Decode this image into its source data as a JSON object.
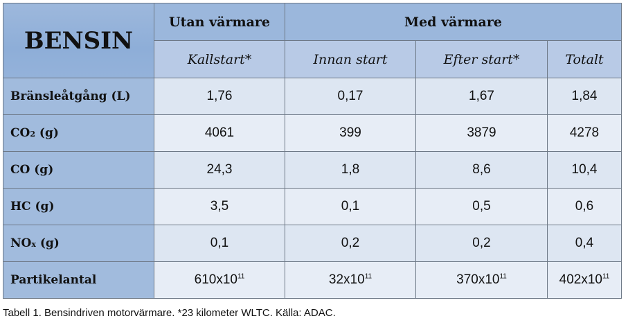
{
  "table": {
    "corner": "BENSIN",
    "group_without": "Utan värmare",
    "group_with": "Med värmare",
    "sub_cold": "Kallstart*",
    "sub_before": "Innan start",
    "sub_after": "Efter start*",
    "sub_total": "Totalt",
    "rows": [
      {
        "label": "Bränsleåtgång (L)",
        "values": [
          "1,76",
          "0,17",
          "1,67",
          "1,84"
        ]
      },
      {
        "label_main": "CO",
        "label_sub": "2",
        "label_tail": " (g)",
        "values": [
          "4061",
          "399",
          "3879",
          "4278"
        ]
      },
      {
        "label": "CO (g)",
        "values": [
          "24,3",
          "1,8",
          "8,6",
          "10,4"
        ]
      },
      {
        "label": "HC (g)",
        "values": [
          "3,5",
          "0,1",
          "0,5",
          "0,6"
        ]
      },
      {
        "label_main": "NO",
        "label_sub": "x",
        "label_tail": " (g)",
        "values": [
          "0,1",
          "0,2",
          "0,2",
          "0,4"
        ]
      },
      {
        "label": "Partikelantal",
        "values": [
          {
            "base": "610x10",
            "exp": "11"
          },
          {
            "base": "32x10",
            "exp": "11"
          },
          {
            "base": "370x10",
            "exp": "11"
          },
          {
            "base": "402x10",
            "exp": "11"
          }
        ]
      }
    ]
  },
  "caption": "Tabell 1. Bensindriven motorvärmare. *23 kilometer WLTC. Källa: ADAC."
}
